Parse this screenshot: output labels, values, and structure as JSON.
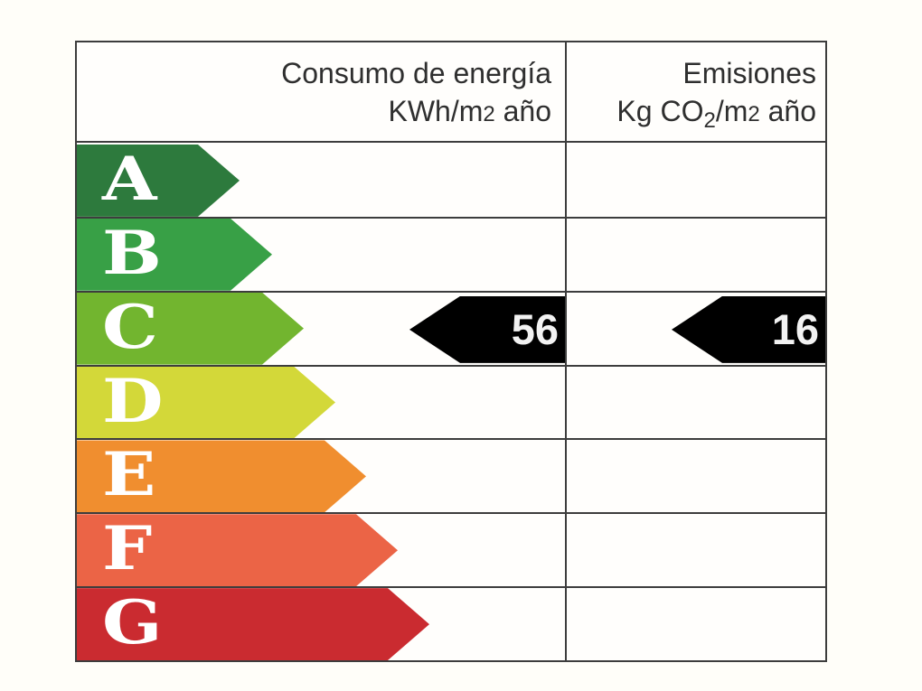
{
  "header": {
    "consumption": {
      "title": "Consumo de energía",
      "unit_pre": "KWh/m",
      "unit_sup": "2",
      "unit_post": " año"
    },
    "emissions": {
      "title": "Emisiones",
      "unit_p1": "Kg CO",
      "unit_sub": "2",
      "unit_p2": "/m",
      "unit_sup": "2",
      "unit_p3": " año"
    }
  },
  "scale": [
    {
      "letter": "A",
      "color": "#2d7a3d",
      "arrow_width": 180
    },
    {
      "letter": "B",
      "color": "#38a046",
      "arrow_width": 216
    },
    {
      "letter": "C",
      "color": "#72b52f",
      "arrow_width": 251
    },
    {
      "letter": "D",
      "color": "#d3d839",
      "arrow_width": 286
    },
    {
      "letter": "E",
      "color": "#f08e2f",
      "arrow_width": 320
    },
    {
      "letter": "F",
      "color": "#eb6446",
      "arrow_width": 355
    },
    {
      "letter": "G",
      "color": "#ca2b30",
      "arrow_width": 390
    }
  ],
  "markers": {
    "rating": "C",
    "consumption_value": "56",
    "emissions_value": "16",
    "marker_color": "#000000",
    "value_text_color": "#f2f2f2"
  },
  "chart_data": {
    "type": "energy-rating-label",
    "columns": [
      "Consumo de energía KWh/m2 año",
      "Emisiones Kg CO2/m2 año"
    ],
    "rating_scale": [
      "A",
      "B",
      "C",
      "D",
      "E",
      "F",
      "G"
    ],
    "rating_colors": [
      "#2d7a3d",
      "#38a046",
      "#72b52f",
      "#d3d839",
      "#f08e2f",
      "#eb6446",
      "#ca2b30"
    ],
    "rating": "C",
    "consumption_kwh_m2_ano": 56,
    "emissions_kg_co2_m2_ano": 16,
    "marker_style": "black left-pointing arrow with white value, aligned to rating row C"
  }
}
